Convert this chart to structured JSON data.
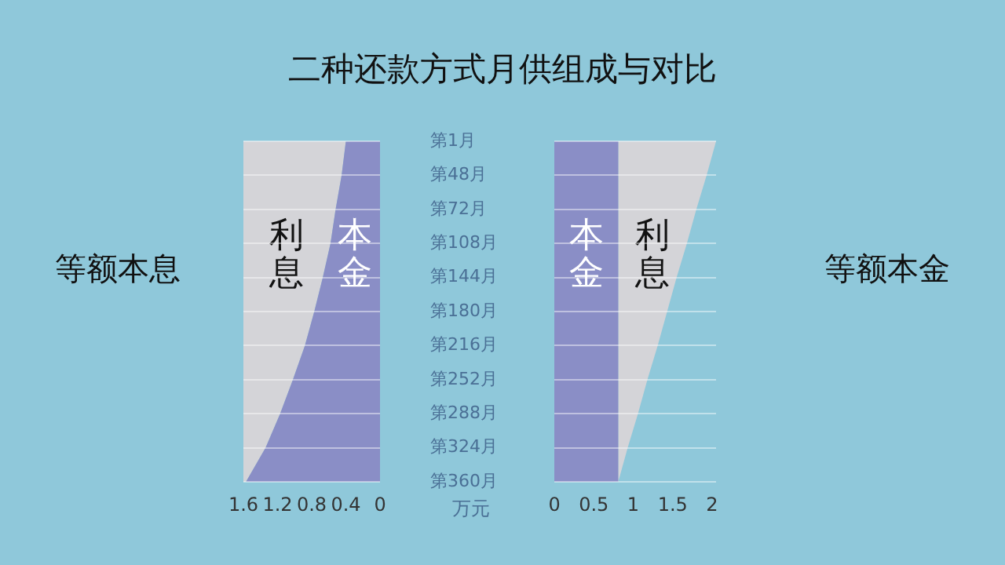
{
  "chart_data": [
    {
      "type": "area",
      "title": "二种还款方式月供组成与对比",
      "ylabel": "等额本息",
      "xlabel": "万元",
      "orientation": "horizontal",
      "stacked": true,
      "categories": [
        "第1月",
        "第48月",
        "第72月",
        "第108月",
        "第144月",
        "第180月",
        "第216月",
        "第252月",
        "第288月",
        "第324月",
        "第360月"
      ],
      "series": [
        {
          "name": "本金",
          "color": "#8a8ec6",
          "values": [
            0.4,
            0.45,
            0.52,
            0.58,
            0.67,
            0.77,
            0.88,
            1.02,
            1.17,
            1.34,
            1.57
          ]
        },
        {
          "name": "利息",
          "color": "#d4d4d8",
          "values": [
            1.2,
            1.15,
            1.08,
            1.02,
            0.93,
            0.83,
            0.72,
            0.58,
            0.43,
            0.26,
            0.03
          ]
        }
      ],
      "xlim": [
        1.6,
        0
      ],
      "xticks": [
        1.6,
        1.2,
        0.8,
        0.4,
        0
      ],
      "grid": "y",
      "tick_labels": "xy"
    },
    {
      "type": "area",
      "ylabel": "等额本金",
      "orientation": "horizontal",
      "stacked": true,
      "categories": [
        null,
        null,
        null,
        null,
        null,
        null,
        null,
        null,
        null,
        null,
        null
      ],
      "series": [
        {
          "name": "本金",
          "color": "#8a8ec6",
          "values": [
            0.81,
            0.81,
            0.81,
            0.81,
            0.81,
            0.81,
            0.81,
            0.81,
            0.81,
            0.81,
            0.81
          ]
        },
        {
          "name": "利息",
          "color": "#d4d4d8",
          "values": [
            1.24,
            1.12,
            0.99,
            0.87,
            0.74,
            0.62,
            0.5,
            0.37,
            0.25,
            0.12,
            0
          ]
        }
      ],
      "xlim": [
        0,
        2.05
      ],
      "xticks": [
        0,
        0.5,
        1,
        1.5,
        2
      ],
      "grid": "y",
      "tick_labels": "x"
    }
  ]
}
